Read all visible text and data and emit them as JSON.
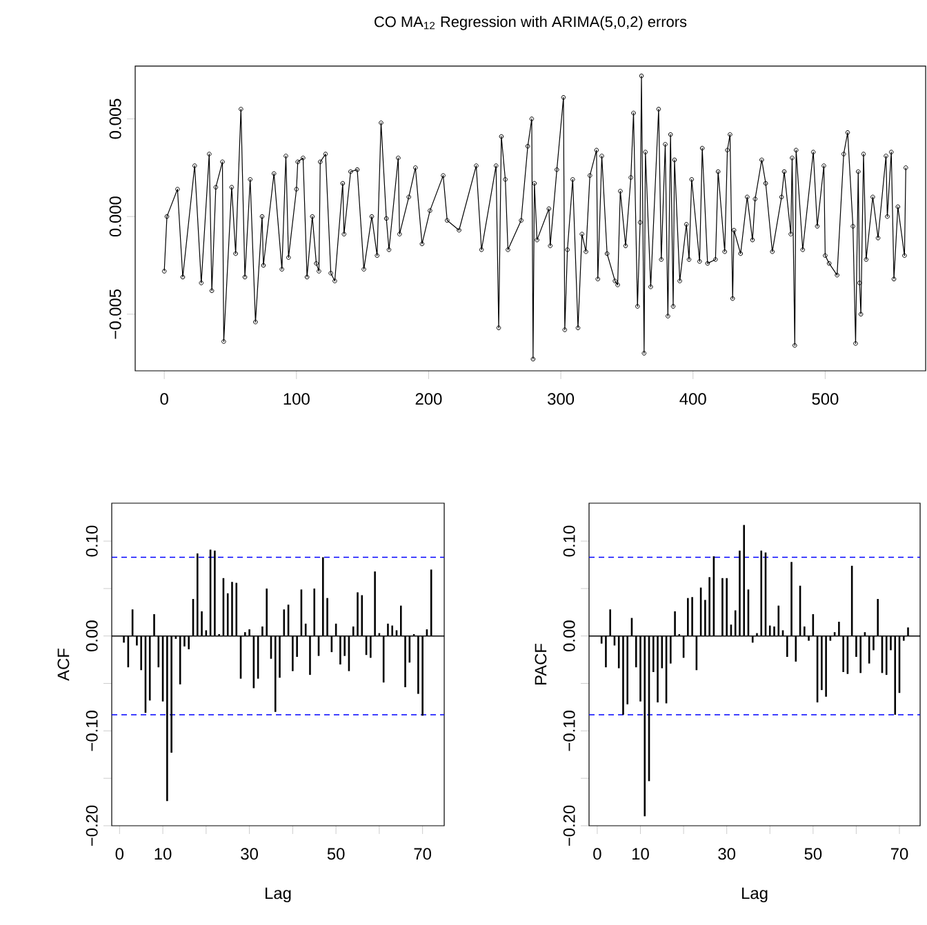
{
  "chart_data": [
    {
      "type": "line",
      "title": "CO MA$_{12}$ Regression with ARIMA(5,0,2) errors",
      "color": "#000000",
      "marker": "circle",
      "x": [
        0,
        2,
        10,
        14,
        23,
        28,
        34,
        36,
        39,
        44,
        45,
        51,
        54,
        58,
        61,
        65,
        69,
        74,
        75,
        83,
        89,
        92,
        94,
        100,
        101,
        105,
        108,
        112,
        115,
        117,
        118,
        122,
        126,
        129,
        135,
        136,
        141,
        146,
        151,
        157,
        161,
        164,
        168,
        170,
        177,
        178,
        185,
        190,
        195,
        201,
        211,
        214,
        223,
        236,
        240,
        251,
        253,
        255,
        258,
        260,
        270,
        275,
        278,
        279,
        280,
        282,
        291,
        292,
        297,
        302,
        303,
        305,
        309,
        313,
        316,
        319,
        322,
        327,
        328,
        331,
        335,
        341,
        343,
        345,
        349,
        353,
        355,
        358,
        360,
        361,
        363,
        364,
        368,
        374,
        376,
        379,
        381,
        383,
        385,
        386,
        390,
        395,
        397,
        399,
        405,
        407,
        411,
        417,
        419,
        424,
        426,
        428,
        430,
        431,
        436,
        441,
        445,
        447,
        452,
        455,
        460,
        467,
        469,
        474,
        475,
        477,
        478,
        483,
        491,
        494,
        499,
        500,
        503,
        509,
        514,
        517,
        521,
        523,
        525,
        526,
        527,
        529,
        531,
        536,
        540,
        546,
        547,
        550,
        552,
        555,
        560,
        561
      ],
      "values": [
        -0.0028,
        0.0,
        0.0014,
        -0.0031,
        0.0026,
        -0.0034,
        0.0032,
        -0.0038,
        0.0015,
        0.0028,
        -0.0064,
        0.0015,
        -0.0019,
        0.0055,
        -0.0031,
        0.0019,
        -0.0054,
        0.0,
        -0.0025,
        0.0022,
        -0.0027,
        0.0031,
        -0.0021,
        0.0014,
        0.0028,
        0.003,
        -0.0031,
        0.0,
        -0.0024,
        -0.0028,
        0.0028,
        0.0032,
        -0.0029,
        -0.0033,
        0.0017,
        -0.0009,
        0.0023,
        0.0024,
        -0.0027,
        0.0,
        -0.002,
        0.0048,
        -0.0001,
        -0.0017,
        0.003,
        -0.0009,
        0.001,
        0.0025,
        -0.0014,
        0.0003,
        0.0021,
        -0.0002,
        -0.0007,
        0.0026,
        -0.0017,
        0.0026,
        -0.0057,
        0.0041,
        0.0019,
        -0.0017,
        -0.0002,
        0.0036,
        0.005,
        -0.0073,
        0.0017,
        -0.0012,
        0.0004,
        -0.0015,
        0.0024,
        0.0061,
        -0.0058,
        -0.0017,
        0.0019,
        -0.0057,
        -0.0009,
        -0.0018,
        0.0021,
        0.0034,
        -0.0032,
        0.0031,
        -0.0019,
        -0.0033,
        -0.0035,
        0.0013,
        -0.0015,
        0.002,
        0.0053,
        -0.0046,
        -0.0003,
        0.0072,
        -0.007,
        0.0033,
        -0.0036,
        0.0055,
        -0.0022,
        0.0037,
        -0.0051,
        0.0042,
        -0.0046,
        0.0029,
        -0.0033,
        -0.0004,
        -0.0022,
        0.0019,
        -0.0023,
        0.0035,
        -0.0024,
        -0.0022,
        0.0023,
        -0.0018,
        0.0034,
        0.0042,
        -0.0042,
        -0.0007,
        -0.0019,
        0.001,
        -0.0012,
        0.0009,
        0.0029,
        0.0017,
        -0.0018,
        0.001,
        0.0023,
        -0.0009,
        0.003,
        -0.0066,
        0.0034,
        -0.0017,
        0.0033,
        -0.0005,
        0.0026,
        -0.002,
        -0.0024,
        -0.003,
        0.0032,
        0.0043,
        -0.0005,
        -0.0065,
        0.0023,
        -0.0034,
        -0.005,
        0.0032,
        -0.0022,
        0.001,
        -0.0011,
        0.0031,
        0.0,
        0.0033,
        -0.0032,
        0.0005,
        -0.002,
        0.0025
      ],
      "xlim": [
        -22,
        576
      ],
      "ylim": [
        -0.0079,
        0.0077
      ],
      "xticks": [
        0,
        100,
        200,
        300,
        400,
        500
      ],
      "yticks": [
        {
          "value": -0.005,
          "label": "−0.005"
        },
        {
          "value": 0,
          "label": "0.000"
        },
        {
          "value": 0.005,
          "label": "0.005"
        }
      ]
    },
    {
      "type": "bar",
      "color": "#000000",
      "xlabel": "Lag",
      "ylabel": "ACF",
      "x": [
        1,
        2,
        3,
        4,
        5,
        6,
        7,
        8,
        9,
        10,
        11,
        12,
        13,
        14,
        15,
        16,
        17,
        18,
        19,
        20,
        21,
        22,
        23,
        24,
        25,
        26,
        27,
        28,
        29,
        30,
        31,
        32,
        33,
        34,
        35,
        36,
        37,
        38,
        39,
        40,
        41,
        42,
        43,
        44,
        45,
        46,
        47,
        48,
        49,
        50,
        51,
        52,
        53,
        54,
        55,
        56,
        57,
        58,
        59,
        60,
        61,
        62,
        63,
        64,
        65,
        66,
        67,
        68,
        69,
        70,
        71,
        72
      ],
      "values": [
        -0.007,
        -0.033,
        0.028,
        -0.01,
        -0.036,
        -0.081,
        -0.068,
        0.023,
        -0.033,
        -0.069,
        -0.174,
        -0.123,
        -0.003,
        -0.051,
        -0.011,
        -0.014,
        0.039,
        0.087,
        0.026,
        0.006,
        0.091,
        0.09,
        0.002,
        0.061,
        0.045,
        0.057,
        0.056,
        -0.045,
        0.004,
        0.007,
        -0.055,
        -0.045,
        0.01,
        0.05,
        -0.024,
        -0.08,
        -0.044,
        0.028,
        0.033,
        -0.037,
        -0.022,
        0.049,
        0.013,
        -0.041,
        0.05,
        -0.021,
        0.083,
        0.04,
        -0.017,
        0.013,
        -0.03,
        -0.021,
        -0.037,
        0.01,
        0.046,
        0.043,
        -0.02,
        -0.023,
        0.068,
        0.003,
        -0.049,
        0.013,
        0.011,
        0.006,
        0.032,
        -0.054,
        -0.028,
        0.002,
        -0.061,
        -0.084,
        0.007,
        0.07
      ],
      "xlim": [
        -1.8,
        75
      ],
      "ylim": [
        -0.2,
        0.14
      ],
      "xticks": [
        0,
        10,
        {
          "value": 20,
          "label": null
        },
        30,
        {
          "value": 40,
          "label": null
        },
        50,
        {
          "value": 60,
          "label": null
        },
        70
      ],
      "yticks": [
        {
          "value": -0.2,
          "label": "−0.20"
        },
        {
          "value": -0.15,
          "label": null
        },
        {
          "value": -0.1,
          "label": "−0.10"
        },
        {
          "value": -0.05,
          "label": null
        },
        {
          "value": 0,
          "label": "0.00"
        },
        {
          "value": 0.05,
          "label": null
        },
        {
          "value": 0.1,
          "label": "0.10"
        }
      ],
      "ref_lines": [
        {
          "axis": "y",
          "value": 0,
          "color": "#000000",
          "line_style": "solid"
        },
        {
          "axis": "y",
          "value": 0.083,
          "color": "#0000ff",
          "line_style": "dashed"
        },
        {
          "axis": "y",
          "value": -0.083,
          "color": "#0000ff",
          "line_style": "dashed"
        }
      ]
    },
    {
      "type": "bar",
      "color": "#000000",
      "xlabel": "Lag",
      "ylabel": "PACF",
      "x": [
        1,
        2,
        3,
        4,
        5,
        6,
        7,
        8,
        9,
        10,
        11,
        12,
        13,
        14,
        15,
        16,
        17,
        18,
        19,
        20,
        21,
        22,
        23,
        24,
        25,
        26,
        27,
        28,
        29,
        30,
        31,
        32,
        33,
        34,
        35,
        36,
        37,
        38,
        39,
        40,
        41,
        42,
        43,
        44,
        45,
        46,
        47,
        48,
        49,
        50,
        51,
        52,
        53,
        54,
        55,
        56,
        57,
        58,
        59,
        60,
        61,
        62,
        63,
        64,
        65,
        66,
        67,
        68,
        69,
        70,
        71,
        72
      ],
      "values": [
        -0.008,
        -0.033,
        0.028,
        -0.01,
        -0.034,
        -0.083,
        -0.072,
        0.019,
        -0.033,
        -0.069,
        -0.19,
        -0.153,
        -0.038,
        -0.07,
        -0.034,
        -0.071,
        -0.029,
        0.026,
        0.002,
        -0.023,
        0.04,
        0.041,
        -0.036,
        0.051,
        0.038,
        0.062,
        0.084,
        null,
        0.061,
        0.061,
        0.012,
        0.027,
        0.09,
        0.117,
        0.049,
        -0.007,
        0.003,
        0.09,
        0.088,
        0.011,
        0.01,
        0.032,
        0.006,
        -0.022,
        0.078,
        -0.027,
        0.053,
        0.01,
        -0.005,
        0.023,
        -0.07,
        -0.057,
        -0.064,
        -0.005,
        0.004,
        0.015,
        -0.038,
        -0.04,
        0.074,
        -0.022,
        -0.039,
        0.004,
        -0.029,
        -0.015,
        0.039,
        -0.039,
        -0.041,
        -0.015,
        -0.083,
        -0.06,
        -0.005,
        0.009
      ],
      "xlim": [
        -1.9,
        74.8
      ],
      "ylim": [
        -0.2,
        0.14
      ],
      "xticks": [
        0,
        10,
        {
          "value": 20,
          "label": null
        },
        30,
        {
          "value": 40,
          "label": null
        },
        50,
        {
          "value": 60,
          "label": null
        },
        70
      ],
      "yticks": [
        {
          "value": -0.2,
          "label": "−0.20"
        },
        {
          "value": -0.15,
          "label": null
        },
        {
          "value": -0.1,
          "label": "−0.10"
        },
        {
          "value": -0.05,
          "label": null
        },
        {
          "value": 0,
          "label": "0.00"
        },
        {
          "value": 0.05,
          "label": null
        },
        {
          "value": 0.1,
          "label": "0.10"
        }
      ],
      "ref_lines": [
        {
          "axis": "y",
          "value": 0,
          "color": "#000000",
          "line_style": "solid"
        },
        {
          "axis": "y",
          "value": 0.083,
          "color": "#0000ff",
          "line_style": "dashed"
        },
        {
          "axis": "y",
          "value": -0.083,
          "color": "#0000ff",
          "line_style": "dashed"
        }
      ]
    }
  ]
}
